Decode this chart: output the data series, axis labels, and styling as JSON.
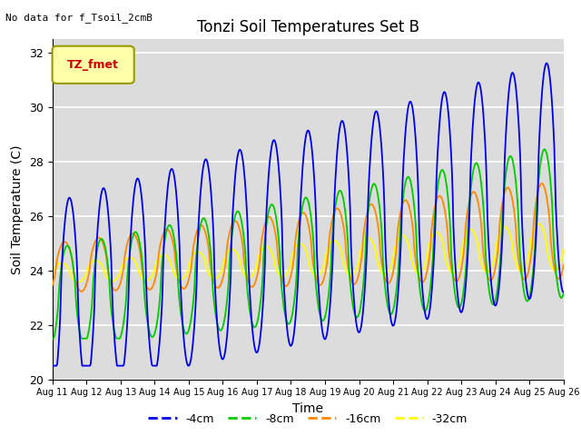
{
  "title": "Tonzi Soil Temperatures Set B",
  "xlabel": "Time",
  "ylabel": "Soil Temperature (C)",
  "note": "No data for f_Tsoil_2cmB",
  "legend_label": "TZ_fmet",
  "ylim": [
    20,
    32.5
  ],
  "xtick_labels": [
    "Aug 11",
    "Aug 12",
    "Aug 13",
    "Aug 14",
    "Aug 15",
    "Aug 16",
    "Aug 17",
    "Aug 18",
    "Aug 19",
    "Aug 20",
    "Aug 21",
    "Aug 22",
    "Aug 23",
    "Aug 24",
    "Aug 25",
    "Aug 26"
  ],
  "ytick_values": [
    20,
    22,
    24,
    26,
    28,
    30,
    32
  ],
  "series": {
    "4cm": {
      "color": "#0000ee",
      "label": "-4cm"
    },
    "8cm": {
      "color": "#00cc00",
      "label": "-8cm"
    },
    "16cm": {
      "color": "#ff8800",
      "label": "-16cm"
    },
    "32cm": {
      "color": "#ffff00",
      "label": "-32cm"
    }
  },
  "background_color": "#dcdcdc",
  "grid_color": "#ffffff",
  "fig_bg": "#ffffff"
}
